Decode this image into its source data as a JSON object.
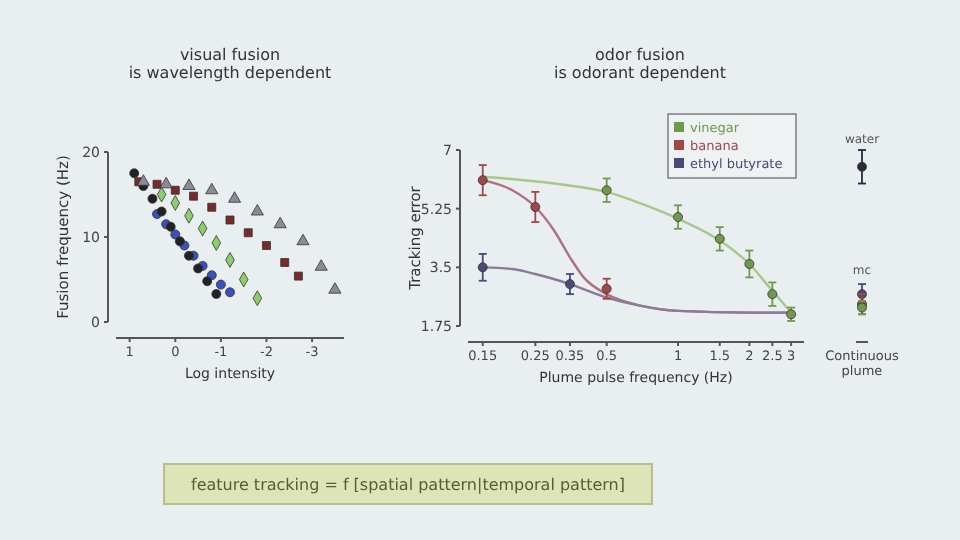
{
  "chart_data": [
    {
      "type": "scatter",
      "title": "visual fusion\nis wavelength dependent",
      "xlabel": "Log intensity",
      "ylabel": "Fusion frequency (Hz)",
      "xlim": [
        1.3,
        -3.7
      ],
      "xticks": [
        1,
        0,
        -1,
        -2,
        -3
      ],
      "ylim": [
        0,
        20
      ],
      "yticks": [
        0,
        10,
        20
      ],
      "series": [
        {
          "color": "#3a4fc0",
          "marker": "circle",
          "x": [
            0.4,
            0.2,
            0,
            -0.2,
            -0.4,
            -0.6,
            -0.8,
            -1,
            -1.2
          ],
          "values": [
            12.7,
            11.5,
            10.3,
            9,
            7.8,
            6.6,
            5.5,
            4.4,
            3.5
          ]
        },
        {
          "color": "#222222",
          "marker": "circle",
          "x": [
            0.9,
            0.7,
            0.5,
            0.3,
            0.1,
            -0.1,
            -0.3,
            -0.5,
            -0.7,
            -0.9
          ],
          "values": [
            17.5,
            16,
            14.5,
            13,
            11.2,
            9.5,
            7.8,
            6.3,
            4.8,
            3.3
          ]
        },
        {
          "color": "#8ccf6a",
          "marker": "diamond",
          "x": [
            0.3,
            0,
            -0.3,
            -0.6,
            -0.9,
            -1.2,
            -1.5,
            -1.8
          ],
          "values": [
            15,
            14,
            12.5,
            11,
            9.3,
            7.3,
            5,
            2.8
          ]
        },
        {
          "color": "#7a2a2a",
          "marker": "square",
          "x": [
            0.8,
            0.4,
            0,
            -0.4,
            -0.8,
            -1.2,
            -1.6,
            -2,
            -2.4,
            -2.7
          ],
          "values": [
            16.5,
            16.2,
            15.5,
            14.8,
            13.5,
            12,
            10.5,
            9,
            7,
            5.4
          ]
        },
        {
          "color": "#8a8a9a",
          "marker": "triangle",
          "x": [
            0.7,
            0.2,
            -0.3,
            -0.8,
            -1.3,
            -1.8,
            -2.3,
            -2.8,
            -3.2,
            -3.5
          ],
          "values": [
            16.5,
            16.2,
            16,
            15.5,
            14.5,
            13,
            11.5,
            9.5,
            6.5,
            3.8
          ]
        }
      ]
    },
    {
      "type": "scatter",
      "title": "odor fusion\nis odorant dependent",
      "xlabel": "Plume pulse frequency (Hz)",
      "ylabel": "Tracking error",
      "log": "x",
      "xlim": [
        0.13,
        3.4
      ],
      "xticks": [
        0.15,
        0.25,
        0.35,
        0.5,
        1,
        1.5,
        2,
        2.5,
        3
      ],
      "ylim": [
        1.75,
        7
      ],
      "yticks": [
        1.75,
        3.5,
        5.25,
        7
      ],
      "legend": "top right",
      "series": [
        {
          "name": "vinegar",
          "color": "#6f9a4e",
          "marker": "circle",
          "x": [
            0.5,
            1,
            1.5,
            2,
            2.5,
            3
          ],
          "values": [
            5.8,
            5.0,
            4.35,
            3.6,
            2.7,
            2.1
          ],
          "errors": [
            0.35,
            0.35,
            0.35,
            0.4,
            0.35,
            0.2
          ]
        },
        {
          "name": "banana",
          "color": "#a04848",
          "marker": "circle",
          "x": [
            0.15,
            0.25,
            0.5
          ],
          "values": [
            6.1,
            5.3,
            2.86
          ],
          "errors": [
            0.45,
            0.45,
            0.3
          ]
        },
        {
          "name": "ethyl butyrate",
          "color": "#4a4a78",
          "marker": "circle",
          "x": [
            0.15,
            0.35
          ],
          "values": [
            3.5,
            3.0
          ],
          "errors": [
            0.4,
            0.3
          ]
        },
        {
          "type": "line",
          "color": "#a8c88a",
          "x": [
            0.15,
            0.3,
            0.5,
            0.7,
            1,
            1.5,
            2,
            2.5,
            3
          ],
          "values": [
            6.2,
            6.0,
            5.75,
            5.4,
            4.95,
            4.3,
            3.6,
            2.8,
            2.15
          ]
        },
        {
          "type": "line",
          "color": "#b07080",
          "x": [
            0.15,
            0.2,
            0.25,
            0.3,
            0.35,
            0.4,
            0.5,
            0.7,
            1,
            2,
            3
          ],
          "values": [
            6.1,
            5.8,
            5.3,
            4.6,
            3.8,
            3.2,
            2.7,
            2.35,
            2.2,
            2.15,
            2.15
          ]
        },
        {
          "type": "line",
          "color": "#8a7a9a",
          "x": [
            0.15,
            0.2,
            0.25,
            0.35,
            0.5,
            0.7,
            1,
            2,
            3
          ],
          "values": [
            3.5,
            3.45,
            3.3,
            3.0,
            2.6,
            2.35,
            2.2,
            2.15,
            2.15
          ]
        }
      ]
    },
    {
      "type": "scatter",
      "categories": [
        "Continuous\nplume"
      ],
      "ylim": [
        1.75,
        7
      ],
      "tick_labels": "x",
      "annotations": [
        "mc"
      ],
      "series": [
        {
          "name": "water",
          "color": "#2a2a40",
          "marker": "circle",
          "values": [
            6.5
          ],
          "errors": [
            0.5
          ]
        },
        {
          "color": "#4a4a78",
          "marker": "circle",
          "values": [
            2.7
          ],
          "errors": [
            0.3
          ]
        },
        {
          "color": "#a04848",
          "marker": "circle",
          "values": [
            2.4
          ],
          "errors": [
            0.3
          ]
        },
        {
          "color": "#6f9a4e",
          "marker": "circle",
          "values": [
            2.3
          ],
          "errors": [
            0.2
          ]
        }
      ]
    },
    {
      "type": "other",
      "annotations": [
        "feature tracking = f [spatial pattern|temporal pattern]"
      ]
    }
  ]
}
